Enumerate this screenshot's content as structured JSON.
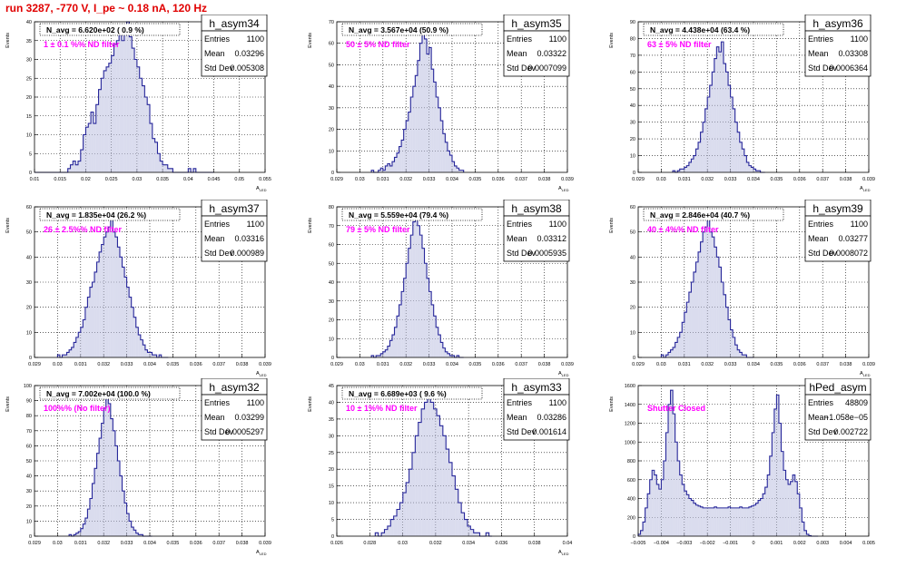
{
  "page_title": "run 3287,  -770 V, I_pe ~ 0.18 nA, 120 Hz",
  "stat_labels": {
    "entries": "Entries",
    "mean": "Mean",
    "std": "Std Dev"
  },
  "colors": {
    "line": "#27279a",
    "fill": "#bcc0e0",
    "title": "#e00000",
    "annotation": "#ff00ff"
  },
  "chart_data": [
    {
      "type": "bar",
      "name": "h_asym34",
      "stats": {
        "entries": "1100",
        "mean": "0.03296",
        "std": "0.005308"
      },
      "navg": "N_avg = 6.620e+02 ( 0.9 %)",
      "filter": "1 ± 0.1 %% ND filter",
      "xlabel": "A_LED",
      "ylabel": "Events",
      "xlim": [
        0.01,
        0.055
      ],
      "ylim": [
        0,
        40
      ],
      "xticks": [
        "0.01",
        "0.015",
        "0.02",
        "0.025",
        "0.03",
        "0.035",
        "0.04",
        "0.045",
        "0.05",
        "0.055"
      ],
      "yticks": [
        "0",
        "5",
        "10",
        "15",
        "20",
        "25",
        "30",
        "35",
        "40"
      ],
      "bins": {
        "x0": 0.01,
        "width": 0.0005,
        "values": [
          0,
          0,
          0,
          0,
          0,
          0,
          0,
          0,
          0,
          0,
          0,
          0,
          0,
          1,
          2,
          3,
          2,
          3,
          6,
          10,
          12,
          13,
          16,
          13,
          18,
          22,
          25,
          27,
          28,
          29,
          31,
          34,
          35,
          37,
          35,
          38,
          40,
          36,
          33,
          30,
          28,
          25,
          23,
          20,
          18,
          13,
          9,
          8,
          5,
          3,
          2,
          2,
          1,
          1,
          0,
          0,
          0,
          0,
          0,
          0,
          1,
          0,
          1,
          0,
          0,
          0,
          0,
          0,
          0,
          0
        ]
      }
    },
    {
      "type": "bar",
      "name": "h_asym35",
      "stats": {
        "entries": "1100",
        "mean": "0.03322",
        "std": "0.0007099"
      },
      "navg": "N_avg = 3.567e+04 (50.9 %)",
      "filter": "50 ± 5% ND filter",
      "xlabel": "A_LED",
      "ylabel": "Events",
      "xlim": [
        0.029,
        0.039
      ],
      "ylim": [
        0,
        70
      ],
      "xticks": [
        "0.029",
        "0.03",
        "0.031",
        "0.032",
        "0.033",
        "0.034",
        "0.035",
        "0.036",
        "0.037",
        "0.038",
        "0.039"
      ],
      "yticks": [
        "0",
        "10",
        "20",
        "30",
        "40",
        "50",
        "60",
        "70"
      ],
      "bins": {
        "x0": 0.0305,
        "width": 0.0001,
        "values": [
          1,
          0,
          0,
          1,
          2,
          1,
          3,
          4,
          3,
          5,
          7,
          9,
          12,
          15,
          20,
          24,
          28,
          35,
          40,
          45,
          52,
          60,
          64,
          62,
          55,
          58,
          48,
          42,
          35,
          30,
          24,
          18,
          14,
          10,
          8,
          5,
          3,
          2,
          1,
          1
        ]
      }
    },
    {
      "type": "bar",
      "name": "h_asym36",
      "stats": {
        "entries": "1100",
        "mean": "0.03308",
        "std": "0.0006364"
      },
      "navg": "N_avg = 4.438e+04 (63.4 %)",
      "filter": "63 ± 5% ND filter",
      "xlabel": "A_LED",
      "ylabel": "Events",
      "xlim": [
        0.029,
        0.039
      ],
      "ylim": [
        0,
        90
      ],
      "xticks": [
        "0.029",
        "0.03",
        "0.031",
        "0.032",
        "0.033",
        "0.034",
        "0.035",
        "0.036",
        "0.037",
        "0.038",
        "0.039"
      ],
      "yticks": [
        "0",
        "10",
        "20",
        "30",
        "40",
        "50",
        "60",
        "70",
        "80",
        "90"
      ],
      "bins": {
        "x0": 0.0305,
        "width": 0.0001,
        "values": [
          1,
          0,
          1,
          2,
          2,
          3,
          4,
          6,
          8,
          10,
          14,
          18,
          24,
          30,
          38,
          45,
          52,
          60,
          68,
          75,
          72,
          78,
          65,
          60,
          52,
          45,
          38,
          30,
          24,
          18,
          14,
          10,
          6,
          4,
          3,
          2,
          1,
          1,
          0,
          0
        ]
      }
    },
    {
      "type": "bar",
      "name": "h_asym37",
      "stats": {
        "entries": "1100",
        "mean": "0.03316",
        "std": "0.000989"
      },
      "navg": "N_avg = 1.835e+04 (26.2 %)",
      "filter": "26 ± 2.5%% ND filter",
      "xlabel": "A_LED",
      "ylabel": "Events",
      "xlim": [
        0.029,
        0.039
      ],
      "ylim": [
        0,
        60
      ],
      "xticks": [
        "0.029",
        "0.03",
        "0.031",
        "0.032",
        "0.033",
        "0.034",
        "0.035",
        "0.036",
        "0.037",
        "0.038",
        "0.039"
      ],
      "yticks": [
        "0",
        "10",
        "20",
        "30",
        "40",
        "50",
        "60"
      ],
      "bins": {
        "x0": 0.03,
        "width": 0.0001,
        "values": [
          1,
          0,
          1,
          1,
          2,
          3,
          4,
          6,
          8,
          10,
          12,
          15,
          20,
          24,
          28,
          30,
          34,
          38,
          42,
          45,
          48,
          50,
          52,
          55,
          50,
          48,
          44,
          40,
          36,
          32,
          28,
          24,
          20,
          16,
          12,
          9,
          7,
          5,
          3,
          2,
          2,
          1,
          1,
          0,
          1,
          0,
          0,
          0
        ]
      }
    },
    {
      "type": "bar",
      "name": "h_asym38",
      "stats": {
        "entries": "1100",
        "mean": "0.03312",
        "std": "0.0005935"
      },
      "navg": "N_avg = 5.559e+04 (79.4 %)",
      "filter": "79 ± 5% ND filter",
      "xlabel": "A_LED",
      "ylabel": "Events",
      "xlim": [
        0.029,
        0.039
      ],
      "ylim": [
        0,
        80
      ],
      "xticks": [
        "0.029",
        "0.03",
        "0.031",
        "0.032",
        "0.033",
        "0.034",
        "0.035",
        "0.036",
        "0.037",
        "0.038",
        "0.039"
      ],
      "yticks": [
        "0",
        "10",
        "20",
        "30",
        "40",
        "50",
        "60",
        "70",
        "80"
      ],
      "bins": {
        "x0": 0.0305,
        "width": 0.0001,
        "values": [
          1,
          0,
          1,
          1,
          2,
          3,
          4,
          6,
          9,
          12,
          16,
          22,
          28,
          35,
          42,
          50,
          58,
          65,
          72,
          76,
          70,
          65,
          58,
          50,
          42,
          35,
          28,
          22,
          16,
          12,
          8,
          5,
          3,
          2,
          1,
          1,
          0,
          1,
          0,
          0
        ]
      }
    },
    {
      "type": "bar",
      "name": "h_asym39",
      "stats": {
        "entries": "1100",
        "mean": "0.03277",
        "std": "0.0008072"
      },
      "navg": "N_avg = 2.846e+04 (40.7 %)",
      "filter": "40 ± 4%% ND filter",
      "xlabel": "A_LED",
      "ylabel": "Events",
      "xlim": [
        0.029,
        0.039
      ],
      "ylim": [
        0,
        60
      ],
      "xticks": [
        "0.029",
        "0.03",
        "0.031",
        "0.032",
        "0.033",
        "0.034",
        "0.035",
        "0.036",
        "0.037",
        "0.038",
        "0.039"
      ],
      "yticks": [
        "0",
        "10",
        "20",
        "30",
        "40",
        "50",
        "60"
      ],
      "bins": {
        "x0": 0.03,
        "width": 0.0001,
        "values": [
          1,
          0,
          1,
          2,
          3,
          4,
          6,
          8,
          10,
          14,
          18,
          22,
          26,
          30,
          34,
          38,
          42,
          46,
          50,
          52,
          55,
          50,
          48,
          44,
          40,
          36,
          30,
          25,
          20,
          15,
          11,
          8,
          5,
          3,
          2,
          1,
          1,
          0,
          0,
          0
        ]
      }
    },
    {
      "type": "bar",
      "name": "h_asym32",
      "stats": {
        "entries": "1100",
        "mean": "0.03299",
        "std": "0.0005297"
      },
      "navg": "N_avg = 7.002e+04 (100.0 %)",
      "filter": "100%% (No filter)",
      "xlabel": "A_LED",
      "ylabel": "Events",
      "xlim": [
        0.029,
        0.039
      ],
      "ylim": [
        0,
        100
      ],
      "xticks": [
        "0.029",
        "0.03",
        "0.031",
        "0.032",
        "0.033",
        "0.034",
        "0.035",
        "0.036",
        "0.037",
        "0.038",
        "0.039"
      ],
      "yticks": [
        "0",
        "10",
        "20",
        "30",
        "40",
        "50",
        "60",
        "70",
        "80",
        "90",
        "100"
      ],
      "bins": {
        "x0": 0.0305,
        "width": 0.0001,
        "values": [
          1,
          0,
          1,
          2,
          3,
          5,
          8,
          12,
          18,
          25,
          35,
          45,
          55,
          65,
          75,
          85,
          95,
          88,
          78,
          70,
          60,
          50,
          40,
          30,
          22,
          15,
          10,
          6,
          4,
          2,
          1,
          1,
          0,
          0,
          0,
          0
        ]
      }
    },
    {
      "type": "bar",
      "name": "h_asym33",
      "stats": {
        "entries": "1100",
        "mean": "0.03286",
        "std": "0.001614"
      },
      "navg": "N_avg = 6.689e+03 ( 9.6 %)",
      "filter": "10 ± 1%% ND filter",
      "xlabel": "A_LED",
      "ylabel": "Events",
      "xlim": [
        0.026,
        0.041
      ],
      "ylim": [
        0,
        45
      ],
      "xticks": [
        "0.026",
        "0.028",
        "0.03",
        "0.032",
        "0.034",
        "0.036",
        "0.038",
        "0.04"
      ],
      "yticks": [
        "0",
        "5",
        "10",
        "15",
        "20",
        "25",
        "30",
        "35",
        "40",
        "45"
      ],
      "bins": {
        "x0": 0.0285,
        "width": 0.0002,
        "values": [
          1,
          0,
          1,
          2,
          3,
          5,
          6,
          8,
          10,
          13,
          16,
          20,
          25,
          30,
          34,
          38,
          40,
          42,
          40,
          38,
          36,
          33,
          30,
          26,
          22,
          18,
          14,
          10,
          7,
          5,
          3,
          2,
          1,
          1,
          0,
          0,
          1,
          0
        ]
      }
    },
    {
      "type": "bar",
      "name": "hPed_asym",
      "stats": {
        "entries": "48809",
        "mean": "−1.058e−05",
        "std": "0.002722"
      },
      "navg": "",
      "filter": "Shutter Closed",
      "xlabel": "",
      "ylabel": "Events",
      "xlim": [
        -0.005,
        0.005
      ],
      "ylim": [
        0,
        1600
      ],
      "xticks": [
        "−0.005",
        "−0.004",
        "−0.003",
        "−0.002",
        "−0.001",
        "0",
        "0.001",
        "0.002",
        "0.003",
        "0.004",
        "0.005"
      ],
      "yticks": [
        "0",
        "200",
        "400",
        "600",
        "800",
        "1000",
        "1200",
        "1400",
        "1600"
      ],
      "bins": {
        "x0": -0.0052,
        "width": 0.0001,
        "values": [
          0,
          5,
          20,
          60,
          150,
          300,
          450,
          600,
          700,
          650,
          550,
          500,
          600,
          800,
          1100,
          1400,
          1550,
          1300,
          1000,
          800,
          650,
          550,
          480,
          440,
          400,
          380,
          350,
          330,
          320,
          310,
          300,
          300,
          300,
          300,
          300,
          310,
          300,
          300,
          300,
          300,
          300,
          310,
          300,
          300,
          300,
          300,
          310,
          300,
          300,
          300,
          310,
          320,
          330,
          350,
          380,
          400,
          450,
          520,
          650,
          850,
          1100,
          1350,
          1500,
          1200,
          900,
          700,
          600,
          550,
          580,
          650,
          580,
          450,
          300,
          150,
          60,
          20,
          5,
          0,
          0,
          0
        ]
      }
    }
  ]
}
